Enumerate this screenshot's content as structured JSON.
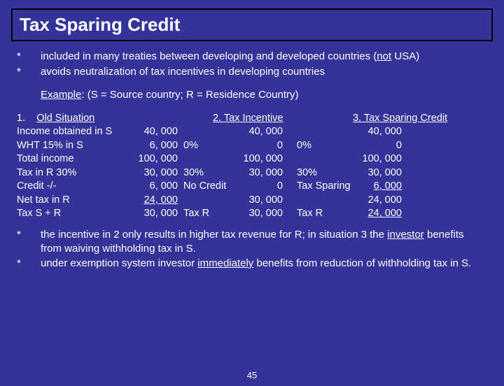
{
  "title": "Tax Sparing Credit",
  "bullets_top": [
    {
      "mark": "*",
      "html": "included in many treaties between developing and developed countries (<span class='u'>not</span> USA)"
    },
    {
      "mark": "*",
      "html": "avoids neutralization of tax incentives in developing countries"
    }
  ],
  "example_label": "Example",
  "example_suffix": ": (S = Source country; R = Residence Country)",
  "headers": {
    "h1_num": "1.",
    "h1": "Old Situation",
    "h2": "2. Tax Incentive",
    "h3": "3. Tax Sparing Credit"
  },
  "rows": [
    {
      "label": "Income obtained in S",
      "v1": "40, 000",
      "p2": "",
      "v2": "40, 000",
      "p3": "",
      "v3": "40, 000"
    },
    {
      "label": "WHT 15% in S",
      "v1": "6, 000",
      "p2": "0%",
      "v2": "0",
      "p3": "0%",
      "v3": "0"
    },
    {
      "label": "Total income",
      "v1": "100, 000",
      "p2": "",
      "v2": "100, 000",
      "p3": "",
      "v3": "100, 000"
    },
    {
      "label": "Tax in R 30%",
      "v1": "30, 000",
      "p2": "30%",
      "v2": "30, 000",
      "p3": "30%",
      "v3": "30, 000"
    },
    {
      "label": "Credit                    -/-",
      "v1": "6, 000",
      "p2": "No Credit",
      "v2": "0",
      "p3": "Tax Sparing",
      "v3": "6, 000",
      "u3": true
    },
    {
      "label": "Net tax in R",
      "v1": "24, 000",
      "p2": "",
      "v2": "30, 000",
      "p3": "",
      "v3": "24, 000",
      "u1": true
    },
    {
      "label": "Tax S + R",
      "v1": "30, 000",
      "p2": "Tax R",
      "v2": "30, 000",
      "p3": "Tax R",
      "v3": "24, 000",
      "u3b": true
    }
  ],
  "bullets_bottom": [
    {
      "mark": "*",
      "html": "the incentive in 2 only results in higher tax revenue for R; in situation 3 the <span class='u'>investor</span> benefits from waiving withholding tax in S."
    },
    {
      "mark": "*",
      "html": "under exemption system investor <span class='u'>immediately</span> benefits from reduction of withholding tax in S."
    }
  ],
  "page_number": "45"
}
